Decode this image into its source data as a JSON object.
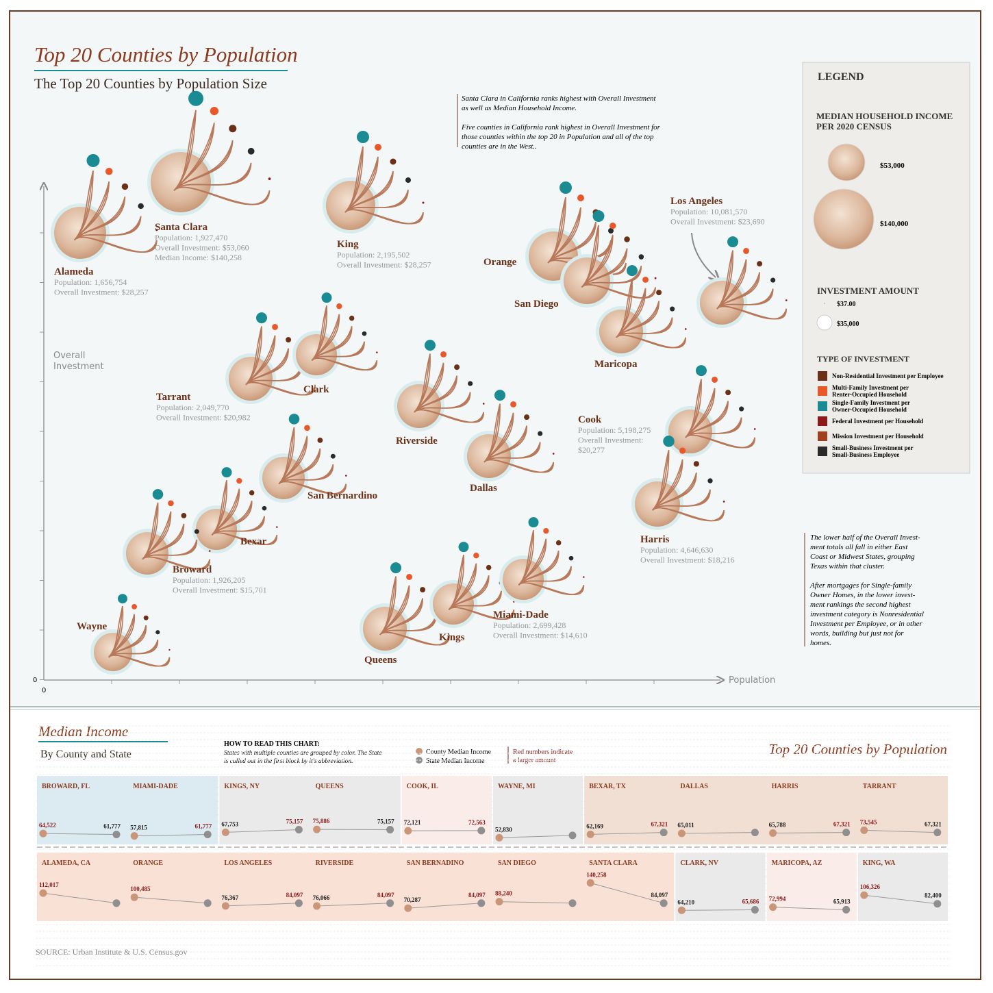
{
  "header": {
    "title": "Top 20 Counties by Population",
    "subtitle": "The Top 20 Counties by Population Size"
  },
  "notes": {
    "top": [
      "Santa Clara in California ranks highest with Overall Investment",
      "as well as Median Household Income.",
      "Five counties in California rank highest in Overall Investment for",
      "those counties within the top 20 in Population and all of the top",
      "counties are in the West.."
    ],
    "bottom": [
      "The lower half of the Overall Invest-",
      "ment totals all fall in either East",
      "Coast or Midwest States, grouping",
      "Texas within that cluster.",
      "After mortgages for Single-family",
      "Owner Homes, in the lower invest-",
      "ment rankings the second highest",
      "investment category is Nonresidential",
      "Investment per Employee, or in other",
      "words, building but just not for",
      "homes."
    ]
  },
  "axes": {
    "y_label": [
      "Overall",
      "Investment"
    ],
    "x_label": "Population",
    "x_origin": "0",
    "y_origin": "0"
  },
  "counties": [
    {
      "name": "Alameda",
      "details": [
        "Population: 1,656,754",
        "Overall Investment: $28,257"
      ]
    },
    {
      "name": "Santa Clara",
      "details": [
        "Population: 1,927,470",
        "Overall Investment: $53,060",
        "Median Income: $140,258"
      ]
    },
    {
      "name": "King",
      "details": [
        "Population: 2,195,502",
        "Overall Investment: $28,257"
      ]
    },
    {
      "name": "Orange"
    },
    {
      "name": "San Diego"
    },
    {
      "name": "Maricopa"
    },
    {
      "name": "Los Angeles",
      "details": [
        "Population: 10,081,570",
        "Overall Investment: $23,690"
      ]
    },
    {
      "name": "Tarrant",
      "details": [
        "Population: 2,049,770",
        "Overall Investment: $20,982"
      ]
    },
    {
      "name": "Clark"
    },
    {
      "name": "Riverside"
    },
    {
      "name": "Dallas"
    },
    {
      "name": "Cook",
      "details": [
        "Population: 5,198,275",
        "Overall Investment:",
        "$20,277"
      ]
    },
    {
      "name": "Harris",
      "details": [
        "Population: 4,646,630",
        "Overall Investment: $18,216"
      ]
    },
    {
      "name": "San Bernardino"
    },
    {
      "name": "Bexar"
    },
    {
      "name": "Broward",
      "details": [
        "Population: 1,926,205",
        "Overall Investment: $15,701"
      ]
    },
    {
      "name": "Wayne"
    },
    {
      "name": "Queens"
    },
    {
      "name": "Kings"
    },
    {
      "name": "Miami-Dade",
      "details": [
        "Population: 2,699,428",
        "Overall Investment: $14,610"
      ]
    }
  ],
  "legend": {
    "title": "LEGEND",
    "income_title": [
      "MEDIAN HOUSEHOLD INCOME",
      "PER 2020 CENSUS"
    ],
    "income_items": [
      "$53,000",
      "$140,000"
    ],
    "investment_title": "INVESTMENT AMOUNT",
    "investment_items": [
      "$37.00",
      "$35,000"
    ],
    "type_title": "TYPE OF INVESTMENT",
    "types": [
      {
        "label": [
          "Non-Residential Investment per Employee"
        ],
        "color": "#6b3018"
      },
      {
        "label": [
          "Multi-Family Investment per",
          "Renter-Occupied Household"
        ],
        "color": "#e8582a"
      },
      {
        "label": [
          "Single-Family Investment per",
          "Owner-Occupied Household"
        ],
        "color": "#1a8a93"
      },
      {
        "label": [
          "Federal Investment per Household"
        ],
        "color": "#8b1a1a"
      },
      {
        "label": [
          "Mission Investment per Household"
        ],
        "color": "#a0401e"
      },
      {
        "label": [
          "Small-Business Investment per",
          "Small-Business Employee"
        ],
        "color": "#2a2a2a"
      }
    ]
  },
  "income": {
    "title": "Median Income",
    "subtitle": "By County and State",
    "howto_title": "HOW TO READ THIS CHART:",
    "howto_text": [
      "States with multiple counties are grouped by color. The State",
      "is called out in the first block by it's abbreviation."
    ],
    "county_key": "County Median Income",
    "state_key": "State Median Income",
    "red_note": [
      "Red numbers indicate",
      "a larger amount"
    ],
    "right_title": "Top 20 Counties by Population",
    "source": "SOURCE:  Urban Institute & U.S. Census.gov",
    "rows": [
      [
        {
          "color": "#d6e7f0",
          "items": [
            {
              "name": "BROWARD, FL",
              "county": 64522,
              "county_label": "64,522",
              "state": 61777,
              "state_label": "61,777"
            },
            {
              "name": "MIAMI-DADE",
              "county": 57815,
              "county_label": "57,815",
              "state": 61777,
              "state_label": "61,777"
            }
          ]
        },
        {
          "color": "#e6e6e6",
          "items": [
            {
              "name": "KINGS, NY",
              "county": 67753,
              "county_label": "67,753",
              "state": 75157,
              "state_label": "75,157"
            },
            {
              "name": "QUEENS",
              "county": 75886,
              "county_label": "75,886",
              "state": 75157,
              "state_label": "75,157"
            }
          ]
        },
        {
          "color": "#f9e9e4",
          "items": [
            {
              "name": "COOK, IL",
              "county": 72121,
              "county_label": "72,121",
              "state": 72563,
              "state_label": "72,563"
            }
          ]
        },
        {
          "color": "#e6e6e6",
          "items": [
            {
              "name": "WAYNE, MI",
              "county": 52830,
              "county_label": "52,830",
              "state": 59234
            }
          ]
        },
        {
          "color": "#eed9cc",
          "items": [
            {
              "name": "BEXAR, TX",
              "county": 62169,
              "county_label": "62,169",
              "state": 67321,
              "state_label": "67,321"
            },
            {
              "name": "DALLAS",
              "county": 65011,
              "county_label": "65,011",
              "state": 67321
            },
            {
              "name": "HARRIS",
              "county": 65788,
              "county_label": "65,788",
              "state": 67321,
              "state_label": "67,321"
            },
            {
              "name": "TARRANT",
              "county": 73545,
              "county_label": "73,545",
              "state": 67321,
              "state_label": "67,321"
            }
          ]
        }
      ],
      [
        {
          "color": "#f8dccf",
          "items": [
            {
              "name": "ALAMEDA, CA",
              "county": 112017,
              "county_label": "112,017",
              "state": 84097
            },
            {
              "name": "ORANGE",
              "county": 100485,
              "county_label": "100,485",
              "state": 84097
            },
            {
              "name": "LOS ANGELES",
              "county": 76367,
              "county_label": "76,367",
              "state": 84097,
              "state_label": "84,097"
            },
            {
              "name": "RIVERSIDE",
              "county": 76066,
              "county_label": "76,066",
              "state": 84097,
              "state_label": "84,097"
            },
            {
              "name": "SAN BERNADINO",
              "county": 70287,
              "county_label": "70,287",
              "state": 84097,
              "state_label": "84,097"
            },
            {
              "name": "SAN DIEGO",
              "county": 88240,
              "county_label": "88,240",
              "state": 84097
            },
            {
              "name": "SANTA CLARA",
              "county": 140258,
              "county_label": "140,258",
              "state": 84097,
              "state_label": "84,097"
            }
          ]
        },
        {
          "color": "#e6e6e6",
          "items": [
            {
              "name": "CLARK, NV",
              "county": 64210,
              "county_label": "64,210",
              "state": 65686,
              "state_label": "65,686"
            }
          ]
        },
        {
          "color": "#f9e9e4",
          "items": [
            {
              "name": "MARICOPA, AZ",
              "county": 72994,
              "county_label": "72,994",
              "state": 65913,
              "state_label": "65,913"
            }
          ]
        },
        {
          "color": "#e6e6e6",
          "items": [
            {
              "name": "KING, WA",
              "county": 106326,
              "county_label": "106,326",
              "state": 82400,
              "state_label": "82,400"
            }
          ]
        }
      ]
    ]
  }
}
